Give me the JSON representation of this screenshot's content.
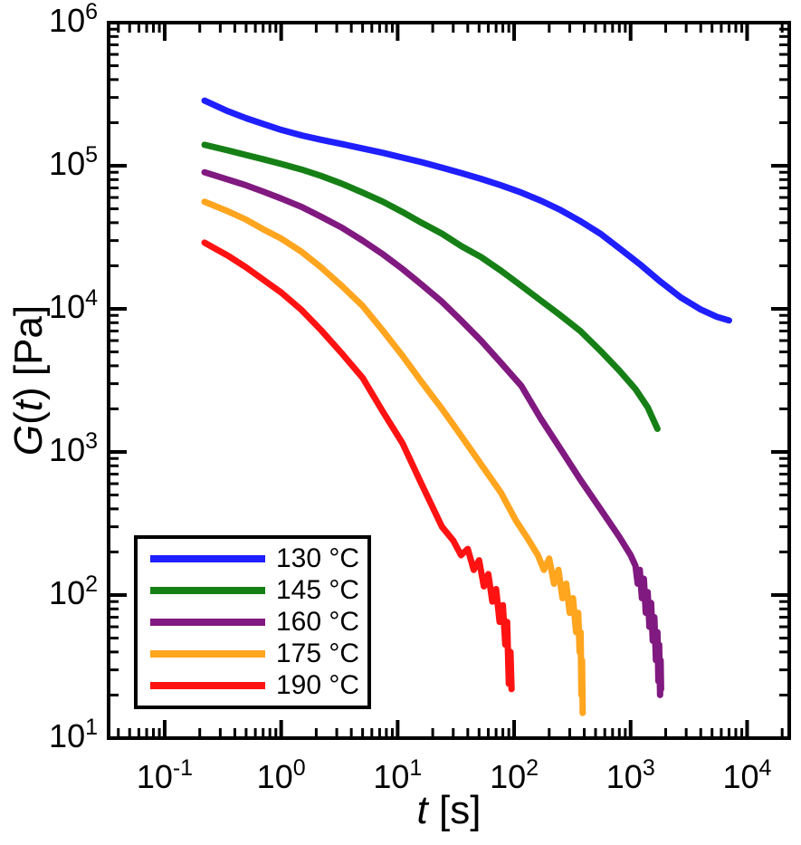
{
  "figure": {
    "background": "#ffffff",
    "frame_color": "#000000"
  },
  "chart_data": {
    "type": "line",
    "title": "",
    "x_scale": "log",
    "y_scale": "log",
    "xlim": [
      0.033,
      23000
    ],
    "ylim": [
      10,
      1000000
    ],
    "xlabel": "t [s]",
    "ylabel": "G(t) [Pa]",
    "xlabel_parts": [
      {
        "t": "t",
        "i": true
      },
      {
        "t": " [s]",
        "i": false
      }
    ],
    "ylabel_parts": [
      {
        "t": "G",
        "i": true
      },
      {
        "t": "(",
        "i": false
      },
      {
        "t": "t",
        "i": true
      },
      {
        "t": ") [Pa]",
        "i": false
      }
    ],
    "tick_base": "10",
    "x_ticks": [
      {
        "value": 0.1,
        "exp": "-1"
      },
      {
        "value": 1,
        "exp": "0"
      },
      {
        "value": 10,
        "exp": "1"
      },
      {
        "value": 100,
        "exp": "2"
      },
      {
        "value": 1000,
        "exp": "3"
      },
      {
        "value": 10000,
        "exp": "4"
      }
    ],
    "y_ticks": [
      {
        "value": 10,
        "exp": "1"
      },
      {
        "value": 100,
        "exp": "2"
      },
      {
        "value": 1000,
        "exp": "3"
      },
      {
        "value": 10000,
        "exp": "4"
      },
      {
        "value": 100000,
        "exp": "5"
      },
      {
        "value": 1000000,
        "exp": "6"
      }
    ],
    "legend_position": "lower-left",
    "series": [
      {
        "name": "130 °C",
        "color": "#1f1fff",
        "points": [
          [
            0.22,
            285000
          ],
          [
            0.35,
            240000
          ],
          [
            0.5,
            215000
          ],
          [
            0.7,
            196000
          ],
          [
            1,
            178000
          ],
          [
            1.5,
            163000
          ],
          [
            2.2,
            152000
          ],
          [
            3.3,
            142000
          ],
          [
            5,
            132000
          ],
          [
            7.5,
            123000
          ],
          [
            11,
            114000
          ],
          [
            16,
            106000
          ],
          [
            24,
            97000
          ],
          [
            35,
            89000
          ],
          [
            52,
            81000
          ],
          [
            77,
            73000
          ],
          [
            115,
            65000
          ],
          [
            170,
            57000
          ],
          [
            250,
            49000
          ],
          [
            370,
            41000
          ],
          [
            550,
            33500
          ],
          [
            800,
            26500
          ],
          [
            1200,
            20500
          ],
          [
            1800,
            15500
          ],
          [
            2700,
            12000
          ],
          [
            4000,
            9900
          ],
          [
            5500,
            8800
          ],
          [
            7000,
            8300
          ]
        ]
      },
      {
        "name": "145 °C",
        "color": "#168016",
        "points": [
          [
            0.22,
            140000
          ],
          [
            0.35,
            128000
          ],
          [
            0.5,
            119000
          ],
          [
            0.7,
            111000
          ],
          [
            1,
            103000
          ],
          [
            1.5,
            94000
          ],
          [
            2.2,
            85000
          ],
          [
            3.3,
            75000
          ],
          [
            5,
            65000
          ],
          [
            7.5,
            56000
          ],
          [
            11,
            47500
          ],
          [
            16,
            40000
          ],
          [
            24,
            33500
          ],
          [
            35,
            27500
          ],
          [
            52,
            23000
          ],
          [
            77,
            18500
          ],
          [
            115,
            14500
          ],
          [
            170,
            11400
          ],
          [
            250,
            9000
          ],
          [
            370,
            7000
          ],
          [
            550,
            5100
          ],
          [
            800,
            3700
          ],
          [
            1100,
            2750
          ],
          [
            1400,
            2050
          ],
          [
            1700,
            1450
          ]
        ]
      },
      {
        "name": "160 °C",
        "color": "#801980",
        "points": [
          [
            0.22,
            90000
          ],
          [
            0.35,
            80000
          ],
          [
            0.5,
            73000
          ],
          [
            0.7,
            66000
          ],
          [
            1,
            59000
          ],
          [
            1.5,
            51500
          ],
          [
            2.2,
            44000
          ],
          [
            3.3,
            37000
          ],
          [
            5,
            30000
          ],
          [
            7.5,
            24000
          ],
          [
            11,
            19000
          ],
          [
            16,
            14800
          ],
          [
            24,
            11200
          ],
          [
            35,
            8300
          ],
          [
            52,
            6000
          ],
          [
            77,
            4200
          ],
          [
            115,
            2900
          ],
          [
            170,
            1700
          ],
          [
            250,
            1050
          ],
          [
            370,
            640
          ],
          [
            550,
            400
          ],
          [
            800,
            255
          ],
          [
            1000,
            190
          ],
          [
            1100,
            160
          ],
          [
            1150,
            120
          ],
          [
            1200,
            150
          ],
          [
            1250,
            95
          ],
          [
            1300,
            130
          ],
          [
            1350,
            75
          ],
          [
            1400,
            105
          ],
          [
            1450,
            60
          ],
          [
            1500,
            88
          ],
          [
            1550,
            48
          ],
          [
            1600,
            70
          ],
          [
            1650,
            35
          ],
          [
            1700,
            55
          ],
          [
            1730,
            25
          ],
          [
            1760,
            45
          ],
          [
            1790,
            20
          ],
          [
            1810,
            35
          ],
          [
            1825,
            22
          ]
        ]
      },
      {
        "name": "175 °C",
        "color": "#ffa51e",
        "points": [
          [
            0.22,
            56000
          ],
          [
            0.35,
            48000
          ],
          [
            0.5,
            42000
          ],
          [
            0.7,
            36000
          ],
          [
            1,
            31000
          ],
          [
            1.5,
            25000
          ],
          [
            2.2,
            19500
          ],
          [
            3.3,
            14500
          ],
          [
            5,
            10500
          ],
          [
            7.5,
            7000
          ],
          [
            11,
            4700
          ],
          [
            16,
            3100
          ],
          [
            24,
            2000
          ],
          [
            35,
            1300
          ],
          [
            52,
            820
          ],
          [
            77,
            520
          ],
          [
            104,
            330
          ],
          [
            130,
            250
          ],
          [
            160,
            190
          ],
          [
            180,
            150
          ],
          [
            200,
            180
          ],
          [
            220,
            120
          ],
          [
            240,
            150
          ],
          [
            260,
            95
          ],
          [
            280,
            120
          ],
          [
            300,
            75
          ],
          [
            320,
            95
          ],
          [
            340,
            55
          ],
          [
            355,
            75
          ],
          [
            365,
            40
          ],
          [
            372,
            55
          ],
          [
            378,
            20
          ],
          [
            383,
            35
          ],
          [
            388,
            15
          ]
        ]
      },
      {
        "name": "190 °C",
        "color": "#ff1212",
        "points": [
          [
            0.22,
            29000
          ],
          [
            0.35,
            23500
          ],
          [
            0.5,
            19500
          ],
          [
            0.7,
            16000
          ],
          [
            1,
            13000
          ],
          [
            1.5,
            9800
          ],
          [
            2.2,
            7100
          ],
          [
            3.3,
            4900
          ],
          [
            5,
            3300
          ],
          [
            7.5,
            1900
          ],
          [
            11,
            1150
          ],
          [
            16,
            600
          ],
          [
            24,
            300
          ],
          [
            30,
            240
          ],
          [
            35,
            190
          ],
          [
            40,
            210
          ],
          [
            45,
            150
          ],
          [
            50,
            175
          ],
          [
            55,
            115
          ],
          [
            60,
            140
          ],
          [
            65,
            90
          ],
          [
            70,
            110
          ],
          [
            75,
            65
          ],
          [
            80,
            85
          ],
          [
            84,
            45
          ],
          [
            87,
            65
          ],
          [
            90,
            24
          ],
          [
            93,
            40
          ],
          [
            95,
            22
          ]
        ]
      }
    ]
  }
}
